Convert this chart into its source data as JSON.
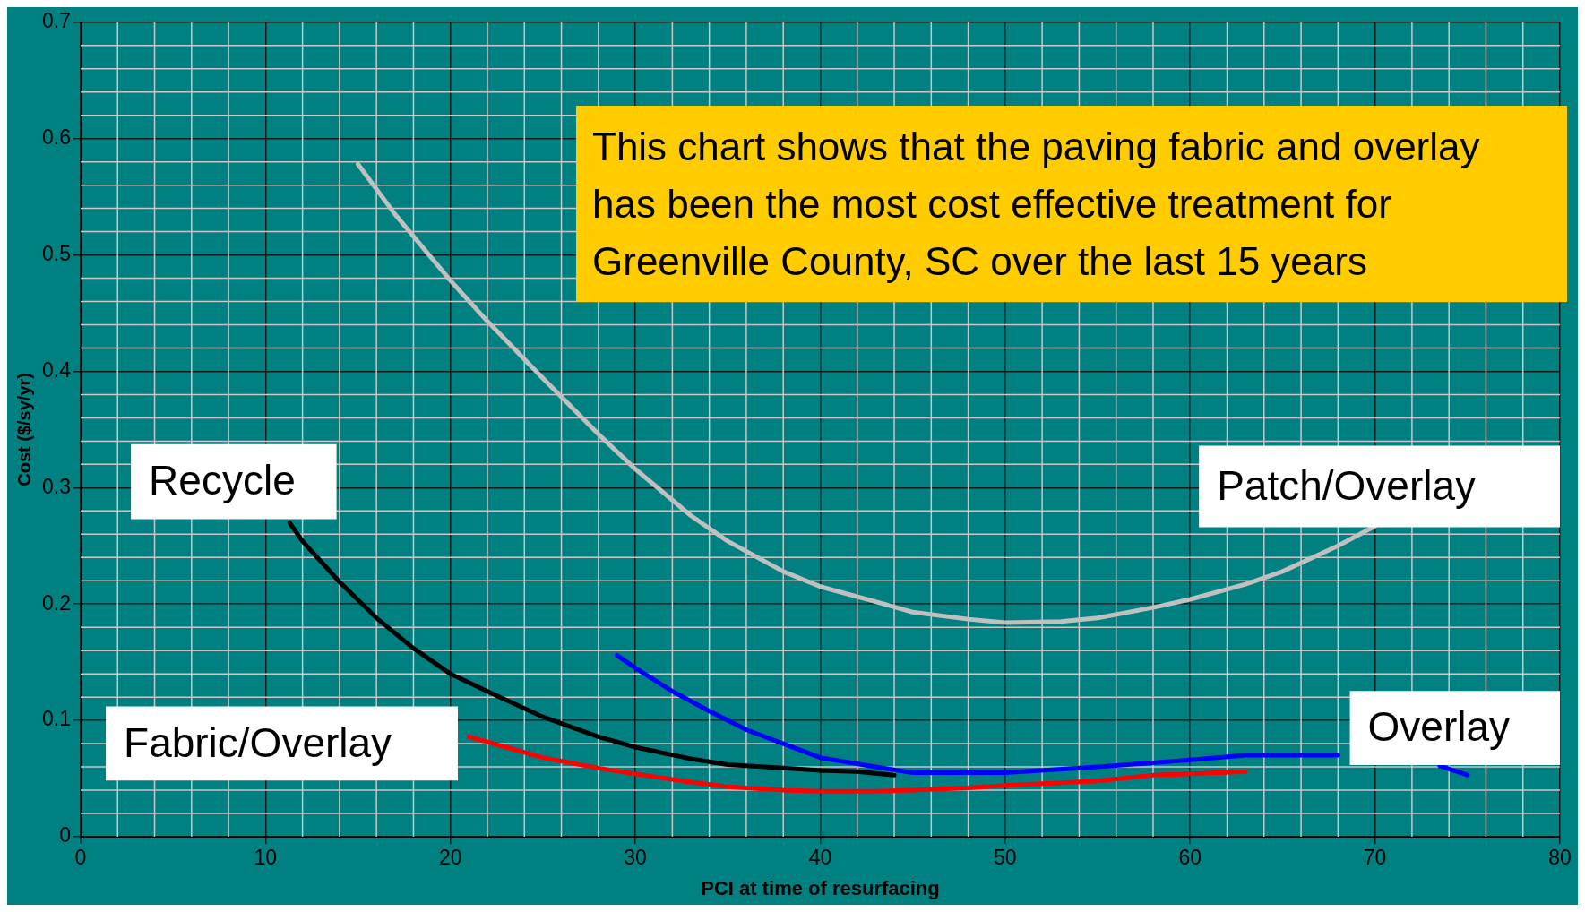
{
  "chart_data": {
    "type": "line",
    "xlabel": "PCI at time of resurfacing",
    "ylabel": "Cost ($/sy/yr)",
    "xlim": [
      0,
      80
    ],
    "xticks": [
      0,
      10,
      20,
      30,
      40,
      50,
      60,
      70,
      80
    ],
    "ylim": [
      0,
      0.7
    ],
    "yticks": [
      0,
      0.1,
      0.2,
      0.3,
      0.4,
      0.5,
      0.6,
      0.7
    ],
    "grid": true,
    "legend": false,
    "marker": "none",
    "line_style": "solid",
    "annotations": [
      "This chart shows that the paving fabric and overlay has been the most cost effective treatment for Greenville County, SC over the last 15 years"
    ],
    "series": [
      {
        "name": "Patch/Overlay",
        "color": "#c0c0c0",
        "x": [
          15,
          17,
          20,
          22,
          25,
          28,
          30,
          33,
          35,
          38,
          40,
          43,
          45,
          48,
          50,
          53,
          55,
          58,
          60,
          63,
          65,
          68,
          70
        ],
        "values": [
          0.578,
          0.535,
          0.478,
          0.443,
          0.394,
          0.346,
          0.316,
          0.276,
          0.254,
          0.228,
          0.215,
          0.202,
          0.193,
          0.187,
          0.184,
          0.185,
          0.188,
          0.197,
          0.204,
          0.217,
          0.228,
          0.25,
          0.267
        ]
      },
      {
        "name": "Recycle",
        "color": "#000000",
        "x": [
          11.3,
          12,
          14,
          16,
          18,
          20,
          22,
          25,
          28,
          30,
          33,
          35,
          38,
          40,
          42,
          44
        ],
        "values": [
          0.27,
          0.254,
          0.219,
          0.188,
          0.162,
          0.14,
          0.125,
          0.103,
          0.086,
          0.077,
          0.067,
          0.062,
          0.059,
          0.057,
          0.056,
          0.053
        ]
      },
      {
        "name": "Fabric/Overlay",
        "color": "#ff0000",
        "x": [
          21,
          23,
          25,
          28,
          30,
          33,
          35,
          38,
          40,
          43,
          45,
          48,
          50,
          55,
          58,
          60,
          63
        ],
        "values": [
          0.086,
          0.077,
          0.068,
          0.059,
          0.054,
          0.047,
          0.043,
          0.04,
          0.039,
          0.039,
          0.04,
          0.042,
          0.044,
          0.048,
          0.053,
          0.054,
          0.056
        ]
      },
      {
        "name": "Overlay",
        "color": "#0000ff",
        "x": [
          29,
          30,
          32,
          34,
          36,
          38,
          40,
          43,
          45,
          50,
          55,
          60,
          63,
          68,
          70,
          73.5,
          75
        ],
        "values": [
          0.156,
          0.145,
          0.125,
          0.108,
          0.092,
          0.08,
          0.068,
          0.06,
          0.055,
          0.055,
          0.06,
          0.066,
          0.07,
          0.07,
          null,
          0.061,
          0.053
        ]
      }
    ]
  }
}
